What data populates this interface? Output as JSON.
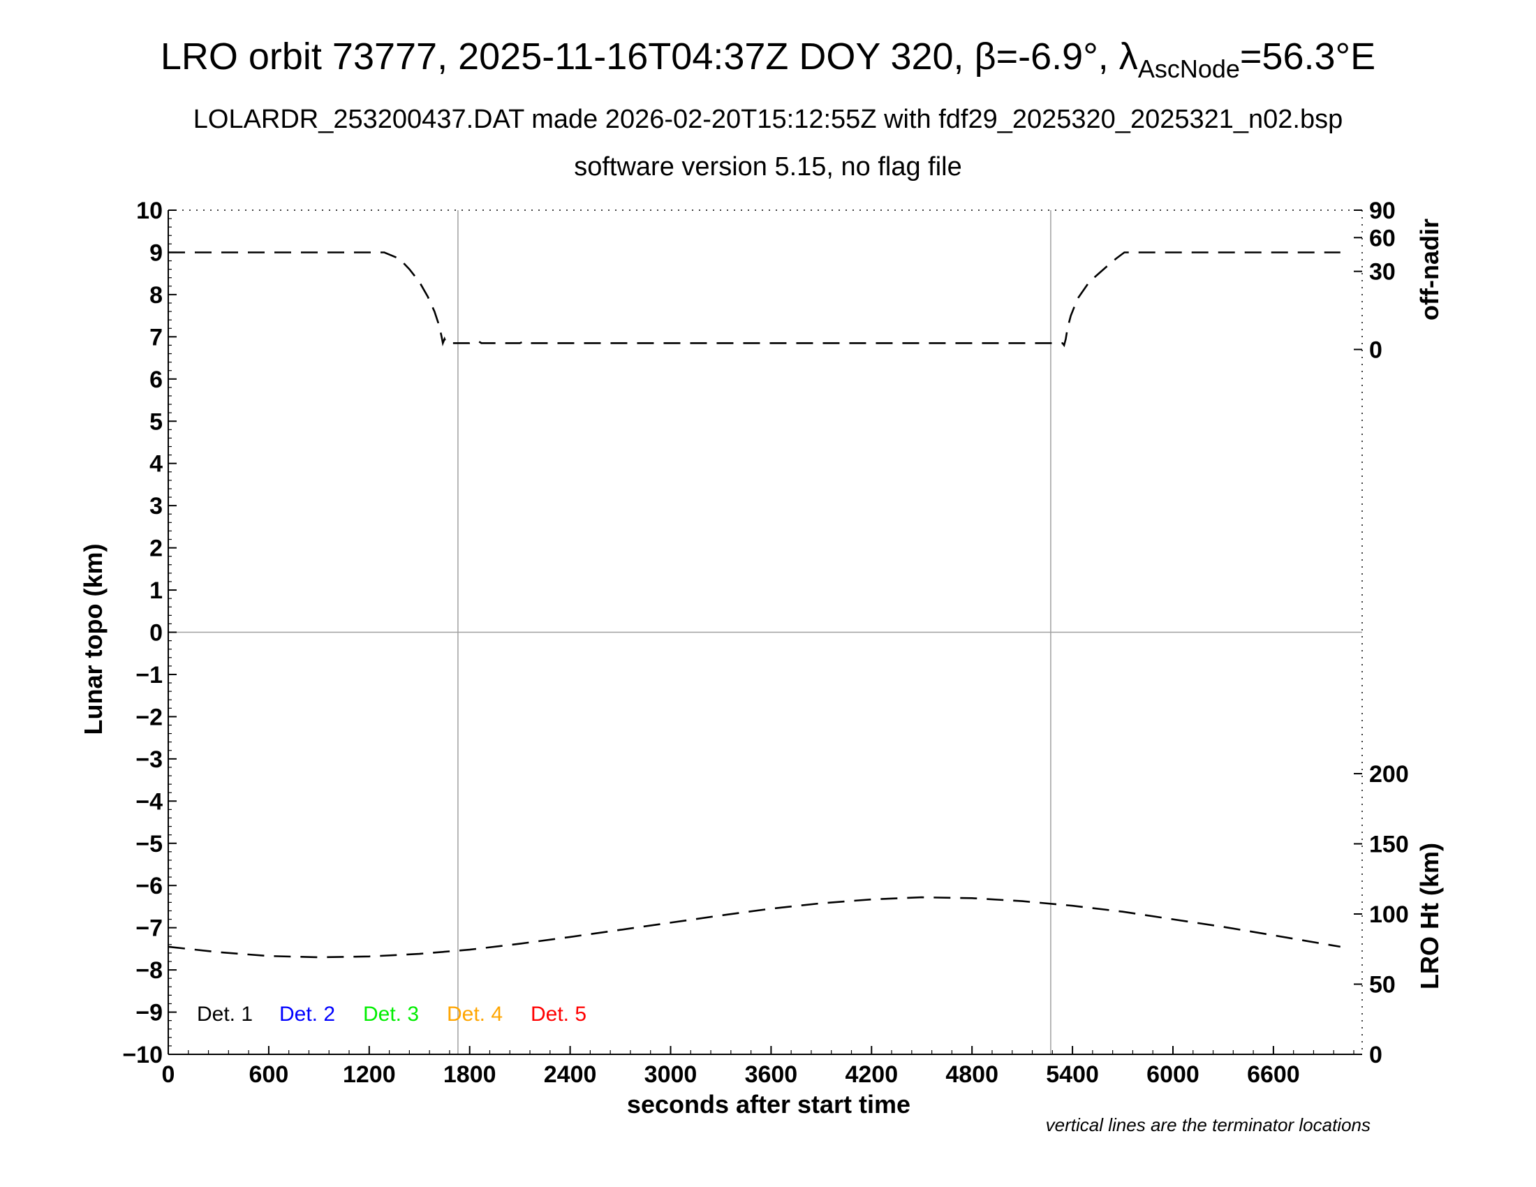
{
  "header": {
    "title_main": "LRO orbit 73777, 2025-11-16T04:37Z DOY 320, β=-6.9°, λ",
    "title_sub": "AscNode",
    "title_end": "=56.3°E",
    "subtitle_1": "LOLARDR_253200437.DAT made 2026-02-20T15:12:55Z with fdf29_2025320_2025321_n02.bsp",
    "subtitle_2": "software version 5.15, no flag file"
  },
  "chart_data": {
    "type": "line",
    "xlabel": "seconds after start time",
    "ylabel": "Lunar topo (km)",
    "right_ylabel_top": "off-nadir",
    "right_ylabel_bottom": "LRO Ht (km)",
    "xlim": [
      0,
      7130
    ],
    "ylim": [
      -10,
      10
    ],
    "xticks": [
      0,
      600,
      1200,
      1800,
      2400,
      3000,
      3600,
      4200,
      4800,
      5400,
      6000,
      6600
    ],
    "yticks": [
      10,
      9,
      8,
      7,
      6,
      5,
      4,
      3,
      2,
      1,
      0,
      -1,
      -2,
      -3,
      -4,
      -5,
      -6,
      -7,
      -8,
      -9,
      -10
    ],
    "off_nadir_ticks": [
      90,
      60,
      30,
      0
    ],
    "ht_ticks": [
      200,
      150,
      100,
      50,
      0
    ],
    "terminator_x": [
      1730,
      5270
    ],
    "note": "vertical lines are the terminator locations",
    "legend": [
      {
        "label": "Det. 1",
        "color": "#000000"
      },
      {
        "label": "Det. 2",
        "color": "#0000ff"
      },
      {
        "label": "Det. 3",
        "color": "#00ee00"
      },
      {
        "label": "Det. 4",
        "color": "#ffa500"
      },
      {
        "label": "Det. 5",
        "color": "#ff0000"
      }
    ],
    "series": [
      {
        "x": [
          0,
          400,
          800,
          1200,
          1290,
          1380,
          1440,
          1500,
          1550,
          1590,
          1615,
          1630,
          1640,
          1650,
          1660,
          1700,
          1800,
          1850,
          1870,
          1900,
          2000,
          2100,
          2130,
          2160,
          2400,
          3000,
          3600,
          4200,
          4800,
          5300,
          5340,
          5350,
          5360,
          5370,
          5390,
          5430,
          5500,
          5600,
          5660,
          5710,
          5760,
          6000,
          6600,
          7000
        ],
        "y": [
          9.0,
          9.0,
          9.0,
          9.0,
          9.0,
          8.85,
          8.6,
          8.3,
          7.95,
          7.6,
          7.3,
          7.05,
          6.85,
          6.95,
          6.85,
          6.85,
          6.85,
          6.9,
          6.85,
          6.85,
          6.85,
          6.85,
          6.9,
          6.85,
          6.85,
          6.85,
          6.85,
          6.85,
          6.85,
          6.85,
          6.85,
          6.8,
          6.95,
          7.2,
          7.5,
          7.9,
          8.3,
          8.65,
          8.85,
          9.0,
          9.0,
          9.0,
          9.0,
          9.0
        ]
      },
      {
        "x": [
          0,
          300,
          600,
          900,
          1200,
          1500,
          1800,
          2100,
          2400,
          2700,
          3000,
          3300,
          3600,
          3900,
          4200,
          4500,
          4800,
          5100,
          5400,
          5700,
          6000,
          6300,
          6600,
          7000
        ],
        "y": [
          -7.45,
          -7.58,
          -7.67,
          -7.7,
          -7.68,
          -7.62,
          -7.52,
          -7.38,
          -7.22,
          -7.05,
          -6.88,
          -6.71,
          -6.55,
          -6.42,
          -6.33,
          -6.28,
          -6.3,
          -6.37,
          -6.48,
          -6.62,
          -6.8,
          -6.98,
          -7.18,
          -7.45
        ]
      }
    ]
  }
}
